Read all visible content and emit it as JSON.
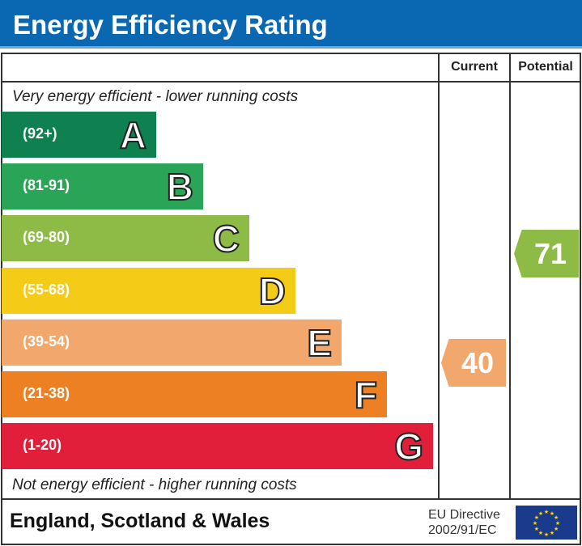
{
  "title": "Energy Efficiency Rating",
  "columns": {
    "current": "Current",
    "potential": "Potential"
  },
  "notes": {
    "top": "Very energy efficient - lower running costs",
    "bottom": "Not energy efficient - higher running costs"
  },
  "chart_data": {
    "type": "bar",
    "bands": [
      {
        "letter": "A",
        "range": "(92+)",
        "color": "#0f8050"
      },
      {
        "letter": "B",
        "range": "(81-91)",
        "color": "#2aa557"
      },
      {
        "letter": "C",
        "range": "(69-80)",
        "color": "#8dbb45"
      },
      {
        "letter": "D",
        "range": "(55-68)",
        "color": "#f4cc17"
      },
      {
        "letter": "E",
        "range": "(39-54)",
        "color": "#f2a86c"
      },
      {
        "letter": "F",
        "range": "(21-38)",
        "color": "#ed8022"
      },
      {
        "letter": "G",
        "range": "(1-20)",
        "color": "#e11f3b"
      }
    ],
    "current": {
      "value": "40",
      "band": "E",
      "color": "#f2a86c"
    },
    "potential": {
      "value": "71",
      "band": "C",
      "color": "#8dbb45"
    }
  },
  "footer": {
    "region": "England, Scotland & Wales",
    "directive_line1": "EU Directive",
    "directive_line2": "2002/91/EC"
  }
}
